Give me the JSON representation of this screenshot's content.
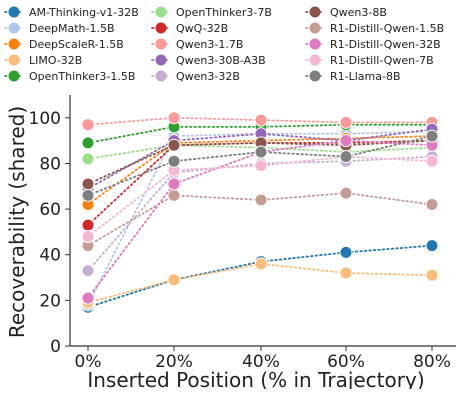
{
  "chart_data": {
    "type": "line",
    "title": "",
    "xlabel": "Inserted Position (% in Trajectory)",
    "ylabel": "Recoverability (shared)",
    "categories": [
      "0%",
      "20%",
      "40%",
      "60%",
      "80%"
    ],
    "ylim": [
      0,
      110
    ],
    "yticks": [
      0,
      20,
      40,
      60,
      80,
      100
    ],
    "grid": false,
    "legend_position": "top",
    "line_style": "dotted",
    "marker": "circle",
    "series": [
      {
        "name": "AM-Thinking-v1-32B",
        "color": "#1f77b4",
        "values": [
          17,
          29,
          37,
          41,
          44
        ]
      },
      {
        "name": "DeepMath-1.5B",
        "color": "#aec7e8",
        "values": [
          18,
          92,
          93,
          93,
          94
        ]
      },
      {
        "name": "DeepScaleR-1.5B",
        "color": "#ff7f0e",
        "values": [
          62,
          89,
          90,
          91,
          92
        ]
      },
      {
        "name": "LIMO-32B",
        "color": "#ffbb78",
        "values": [
          19,
          29,
          36,
          32,
          31
        ]
      },
      {
        "name": "OpenThinker3-1.5B",
        "color": "#2ca02c",
        "values": [
          89,
          96,
          96,
          97,
          97
        ]
      },
      {
        "name": "OpenThinker3-7B",
        "color": "#98df8a",
        "values": [
          82,
          88,
          87,
          85,
          87
        ]
      },
      {
        "name": "QwQ-32B",
        "color": "#d62728",
        "values": [
          53,
          88,
          89,
          89,
          90
        ]
      },
      {
        "name": "Qwen3-1.7B",
        "color": "#ff9896",
        "values": [
          97,
          100,
          99,
          98,
          98
        ]
      },
      {
        "name": "Qwen3-30B-A3B",
        "color": "#9467bd",
        "values": [
          69,
          90,
          93,
          90,
          95
        ]
      },
      {
        "name": "Qwen3-32B",
        "color": "#c5b0d5",
        "values": [
          33,
          76,
          80,
          81,
          83
        ]
      },
      {
        "name": "Qwen3-8B",
        "color": "#8c564b",
        "values": [
          71,
          88,
          89,
          88,
          90
        ]
      },
      {
        "name": "R1-Distill-Qwen-1.5B",
        "color": "#c49c94",
        "values": [
          44,
          66,
          64,
          67,
          62
        ]
      },
      {
        "name": "R1-Distill-Qwen-32B",
        "color": "#e377c2",
        "values": [
          21,
          71,
          85,
          90,
          88
        ]
      },
      {
        "name": "R1-Distill-Qwen-7B",
        "color": "#f7b6d2",
        "values": [
          48,
          77,
          79,
          83,
          81
        ]
      },
      {
        "name": "R1-Llama-8B",
        "color": "#7f7f7f",
        "values": [
          66,
          81,
          85,
          83,
          92
        ]
      }
    ]
  }
}
